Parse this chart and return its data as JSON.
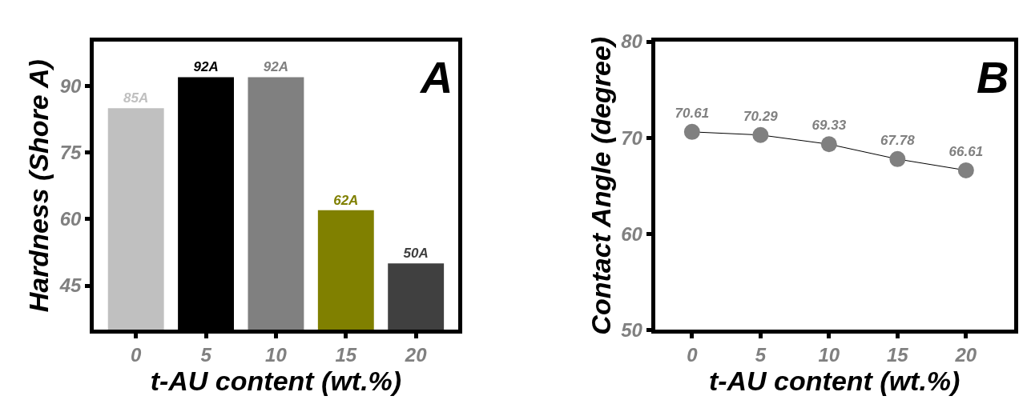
{
  "chart_data": [
    {
      "type": "bar",
      "xlabel": "t-AU content (wt.%)",
      "ylabel": "Hardness (Shore A)",
      "categories": [
        "0",
        "5",
        "10",
        "15",
        "20"
      ],
      "values": [
        85,
        92,
        92,
        62,
        50
      ],
      "colors": [
        "#c0c0c0",
        "#000000",
        "#808080",
        "#808000",
        "#404040"
      ],
      "value_labels": [
        "85A",
        "92A",
        "92A",
        "62A",
        "50A"
      ],
      "ylim": [
        35,
        100
      ],
      "yticks": [
        45,
        60,
        75,
        90
      ],
      "annotations": [
        "A"
      ]
    },
    {
      "type": "line",
      "xlabel": "t-AU content (wt.%)",
      "ylabel": "Contact Angle (degree)",
      "x": [
        0,
        5,
        10,
        15,
        20
      ],
      "series": [
        {
          "color": "#808080",
          "values": [
            70.61,
            70.29,
            69.33,
            67.78,
            66.61
          ]
        }
      ],
      "data_labels": true,
      "marker": "circle",
      "line_style": "solid",
      "xlim": [
        -2.7,
        23.5
      ],
      "xticks": [
        0,
        5,
        10,
        15,
        20
      ],
      "ylim": [
        50,
        80
      ],
      "yticks": [
        50,
        60,
        70,
        80
      ],
      "annotations": [
        "B"
      ]
    }
  ]
}
